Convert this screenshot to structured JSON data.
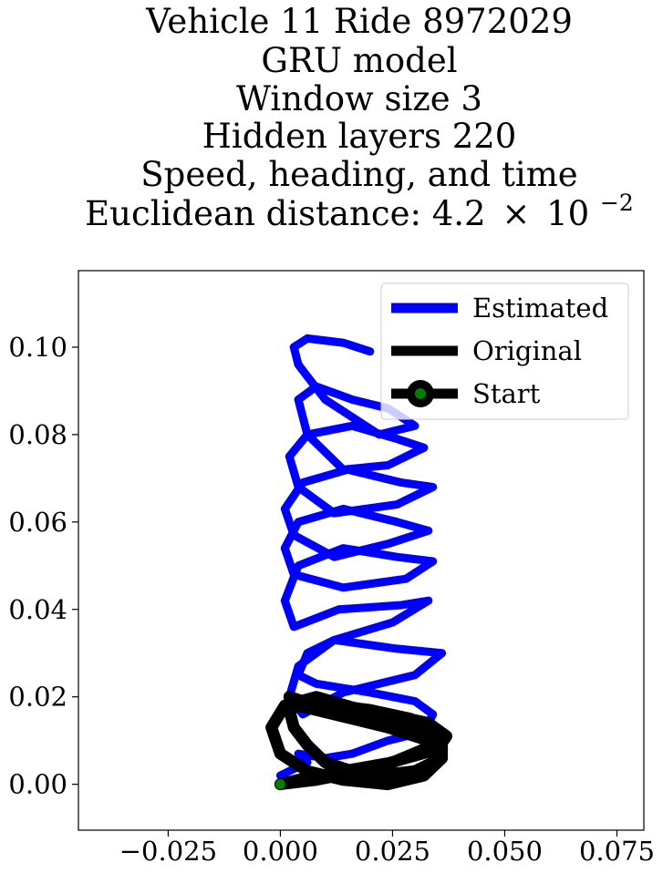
{
  "chart_data": {
    "type": "line",
    "title_lines": [
      "Vehicle 11 Ride 8972029",
      "GRU model",
      "Window size 3",
      "Hidden layers 220",
      "Speed, heading, and time"
    ],
    "title_last_prefix": "Euclidean distance: 4.2",
    "title_last_times": "×",
    "title_last_base": "10",
    "title_last_exp": "−2",
    "xlim": [
      -0.045,
      0.081
    ],
    "ylim": [
      -0.0105,
      0.1175
    ],
    "xticks": [
      -0.025,
      0.0,
      0.025,
      0.05,
      0.075
    ],
    "xtick_labels": [
      "−0.025",
      "0.000",
      "0.025",
      "0.050",
      "0.075"
    ],
    "yticks": [
      0.0,
      0.02,
      0.04,
      0.06,
      0.08,
      0.1
    ],
    "ytick_labels": [
      "0.00",
      "0.02",
      "0.04",
      "0.06",
      "0.08",
      "0.10"
    ],
    "grid": false,
    "legend_position": "top-right",
    "legend": [
      {
        "label": "Estimated",
        "color": "#0000ff",
        "marker": "line"
      },
      {
        "label": "Original",
        "color": "#000000",
        "marker": "line"
      },
      {
        "label": "Start",
        "color": "#000000",
        "marker": "dot",
        "marker_face": "#008000"
      }
    ],
    "series": [
      {
        "name": "Estimated",
        "color": "#0000ff",
        "x": [
          0.0,
          0.006,
          0.004,
          0.01,
          0.016,
          0.024,
          0.032,
          0.034,
          0.03,
          0.02,
          0.008,
          0.004,
          0.006,
          0.012,
          0.026,
          0.036,
          0.03,
          0.014,
          0.005,
          0.002,
          0.004,
          0.012,
          0.025,
          0.033,
          0.027,
          0.013,
          0.003,
          0.001,
          0.004,
          0.014,
          0.026,
          0.034,
          0.028,
          0.014,
          0.003,
          0.001,
          0.004,
          0.014,
          0.026,
          0.033,
          0.024,
          0.012,
          0.003,
          0.001,
          0.005,
          0.015,
          0.027,
          0.034,
          0.026,
          0.012,
          0.004,
          0.002,
          0.006,
          0.016,
          0.026,
          0.032,
          0.024,
          0.014,
          0.006,
          0.004,
          0.008,
          0.016,
          0.024,
          0.03,
          0.022,
          0.01,
          0.004,
          0.003,
          0.006,
          0.014,
          0.02
        ],
        "y": [
          0.002,
          0.005,
          0.007,
          0.006,
          0.007,
          0.01,
          0.012,
          0.016,
          0.019,
          0.021,
          0.023,
          0.025,
          0.03,
          0.033,
          0.031,
          0.03,
          0.025,
          0.021,
          0.016,
          0.02,
          0.027,
          0.033,
          0.037,
          0.042,
          0.041,
          0.04,
          0.036,
          0.042,
          0.05,
          0.054,
          0.052,
          0.051,
          0.047,
          0.045,
          0.048,
          0.054,
          0.06,
          0.063,
          0.06,
          0.058,
          0.055,
          0.052,
          0.057,
          0.063,
          0.069,
          0.072,
          0.069,
          0.068,
          0.064,
          0.062,
          0.068,
          0.075,
          0.08,
          0.082,
          0.079,
          0.077,
          0.073,
          0.072,
          0.08,
          0.088,
          0.091,
          0.088,
          0.086,
          0.082,
          0.08,
          0.088,
          0.096,
          0.1,
          0.102,
          0.101,
          0.099
        ]
      },
      {
        "name": "Original",
        "color": "#000000",
        "x": [
          0.0,
          0.008,
          0.018,
          0.028,
          0.035,
          0.037,
          0.033,
          0.024,
          0.014,
          0.006,
          0.002,
          0.003,
          0.006,
          0.01,
          0.016,
          0.022,
          0.03,
          0.036,
          0.036,
          0.029,
          0.018,
          0.008,
          0.001,
          -0.002,
          0.0,
          0.006,
          0.014,
          0.024,
          0.032,
          0.036,
          0.033,
          0.024,
          0.012,
          0.004,
          0.002,
          0.005,
          0.012,
          0.02,
          0.029,
          0.034,
          0.032,
          0.025,
          0.014,
          0.004,
          0.0
        ],
        "y": [
          0.0,
          0.001,
          0.003,
          0.006,
          0.008,
          0.011,
          0.014,
          0.016,
          0.018,
          0.019,
          0.017,
          0.013,
          0.009,
          0.005,
          0.003,
          0.002,
          0.003,
          0.006,
          0.01,
          0.014,
          0.017,
          0.02,
          0.018,
          0.013,
          0.007,
          0.003,
          0.001,
          0.0,
          0.002,
          0.006,
          0.01,
          0.013,
          0.016,
          0.018,
          0.02,
          0.019,
          0.018,
          0.017,
          0.015,
          0.012,
          0.008,
          0.005,
          0.003,
          0.001,
          0.0
        ]
      }
    ],
    "start_point": {
      "x": 0.0,
      "y": 0.0
    }
  }
}
